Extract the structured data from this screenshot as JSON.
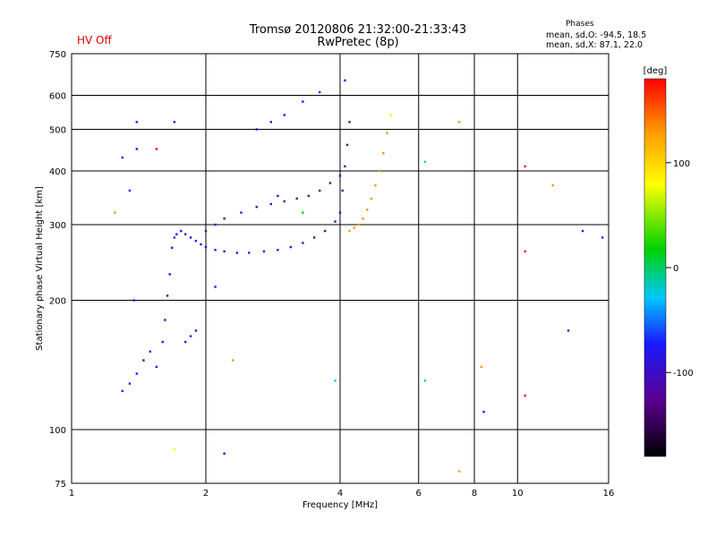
{
  "header": {
    "hv_status": "HV Off",
    "title_line1": "Tromsø 20120806 21:32:00-21:33:43",
    "title_line2": "RwPretec (8p)",
    "phase_title": "Phases",
    "phase_o": "mean, sd,O: -94.5, 18.5",
    "phase_x": "mean, sd,X:  87.1, 22.0"
  },
  "colors": {
    "grid": "#000000",
    "colorbar_stops": [
      "#000000",
      "#5a0090",
      "#1a1aff",
      "#00c8ff",
      "#00d200",
      "#ffff00",
      "#ff9a00",
      "#ff0000"
    ]
  },
  "chart_data": {
    "type": "scatter",
    "xlabel": "Frequency [MHz]",
    "ylabel": "Stationary phase Virtual Height [km]",
    "x_scale": "log",
    "y_scale": "log",
    "xlim": [
      1,
      16
    ],
    "ylim": [
      75,
      750
    ],
    "x_ticks": [
      1,
      2,
      4,
      6,
      8,
      10,
      16
    ],
    "x_tick_labels": [
      "1",
      "2",
      "4",
      "6",
      "8",
      "10",
      "16"
    ],
    "y_ticks": [
      75,
      100,
      200,
      300,
      400,
      500,
      600,
      750
    ],
    "y_tick_labels": [
      "75",
      "100",
      "200",
      "300",
      "400",
      "500",
      "600",
      "750"
    ],
    "x_grid": [
      2,
      4,
      6,
      8,
      10
    ],
    "y_grid": [
      100,
      200,
      300,
      400,
      500,
      600
    ],
    "colorbar": {
      "label": "[deg]",
      "range": [
        -180,
        180
      ],
      "ticks": [
        100,
        0,
        -100
      ],
      "tick_labels": [
        "100",
        "0",
        "-100"
      ]
    },
    "series": [
      {
        "points": [
          [
            1.3,
            123,
            -100
          ],
          [
            1.35,
            128,
            -95
          ],
          [
            1.4,
            135,
            -100
          ],
          [
            1.45,
            145,
            -105
          ],
          [
            1.5,
            152,
            -100
          ],
          [
            1.55,
            140,
            -95
          ],
          [
            1.6,
            160,
            -100
          ],
          [
            1.62,
            180,
            -100
          ],
          [
            1.64,
            205,
            -105
          ],
          [
            1.66,
            230,
            -100
          ],
          [
            1.68,
            265,
            -100
          ],
          [
            1.7,
            280,
            -95
          ],
          [
            1.72,
            285,
            -100
          ],
          [
            1.76,
            290,
            -100
          ],
          [
            1.8,
            285,
            -105
          ],
          [
            1.85,
            280,
            -100
          ],
          [
            1.9,
            275,
            -100
          ],
          [
            1.95,
            270,
            -95
          ],
          [
            2.0,
            266,
            -100
          ],
          [
            2.1,
            262,
            -100
          ],
          [
            2.2,
            260,
            -100
          ],
          [
            2.35,
            258,
            -100
          ],
          [
            2.5,
            258,
            -95
          ],
          [
            2.7,
            260,
            -100
          ],
          [
            2.9,
            262,
            -100
          ],
          [
            3.1,
            266,
            -95
          ],
          [
            3.3,
            272,
            -110
          ],
          [
            3.5,
            280,
            -120
          ],
          [
            3.7,
            290,
            -110
          ],
          [
            3.9,
            305,
            -105
          ],
          [
            4.0,
            320,
            -100
          ],
          [
            4.05,
            360,
            -110
          ],
          [
            4.1,
            410,
            -110
          ],
          [
            4.15,
            460,
            -110
          ],
          [
            4.2,
            520,
            -110
          ],
          [
            1.8,
            160,
            -100
          ],
          [
            1.85,
            165,
            -100
          ],
          [
            1.9,
            170,
            -95
          ],
          [
            2.0,
            290,
            -105
          ],
          [
            2.1,
            300,
            -100
          ],
          [
            2.2,
            310,
            -105
          ],
          [
            2.4,
            320,
            -100
          ],
          [
            2.6,
            330,
            -105
          ],
          [
            2.8,
            335,
            -100
          ],
          [
            3.0,
            340,
            -110
          ],
          [
            3.2,
            345,
            -110
          ],
          [
            3.4,
            350,
            -115
          ],
          [
            3.6,
            360,
            -110
          ],
          [
            3.8,
            375,
            -115
          ],
          [
            4.0,
            390,
            -110
          ],
          [
            2.6,
            500,
            -100
          ],
          [
            2.8,
            520,
            -100
          ],
          [
            3.0,
            540,
            -100
          ],
          [
            3.3,
            580,
            -100
          ],
          [
            3.6,
            610,
            -100
          ],
          [
            4.1,
            650,
            -100
          ],
          [
            4.2,
            290,
            120
          ],
          [
            4.3,
            295,
            115
          ],
          [
            4.4,
            300,
            110
          ],
          [
            4.5,
            310,
            115
          ],
          [
            4.6,
            325,
            110
          ],
          [
            4.7,
            345,
            105
          ],
          [
            4.8,
            370,
            110
          ],
          [
            4.9,
            400,
            115
          ],
          [
            5.0,
            440,
            110
          ],
          [
            5.1,
            490,
            115
          ],
          [
            5.2,
            540,
            100
          ],
          [
            1.4,
            450,
            -100
          ],
          [
            1.4,
            520,
            -100
          ],
          [
            1.55,
            450,
            160
          ],
          [
            1.7,
            520,
            -100
          ],
          [
            1.35,
            360,
            -100
          ],
          [
            1.3,
            430,
            -100
          ],
          [
            1.25,
            320,
            120
          ],
          [
            1.38,
            200,
            -100
          ],
          [
            1.7,
            90,
            60
          ],
          [
            2.2,
            88,
            -100
          ],
          [
            2.3,
            145,
            150
          ],
          [
            2.1,
            215,
            -100
          ],
          [
            6.2,
            420,
            -40
          ],
          [
            6.2,
            130,
            -30
          ],
          [
            7.4,
            520,
            120
          ],
          [
            7.4,
            80,
            120
          ],
          [
            8.3,
            140,
            120
          ],
          [
            8.4,
            110,
            -90
          ],
          [
            10.4,
            410,
            160
          ],
          [
            10.4,
            260,
            170
          ],
          [
            10.4,
            120,
            160
          ],
          [
            12.0,
            370,
            130
          ],
          [
            13.0,
            170,
            -100
          ],
          [
            14.0,
            290,
            -100
          ],
          [
            15.5,
            280,
            -100
          ],
          [
            3.9,
            130,
            -30
          ],
          [
            2.9,
            350,
            -60
          ],
          [
            3.3,
            320,
            20
          ]
        ]
      }
    ]
  }
}
